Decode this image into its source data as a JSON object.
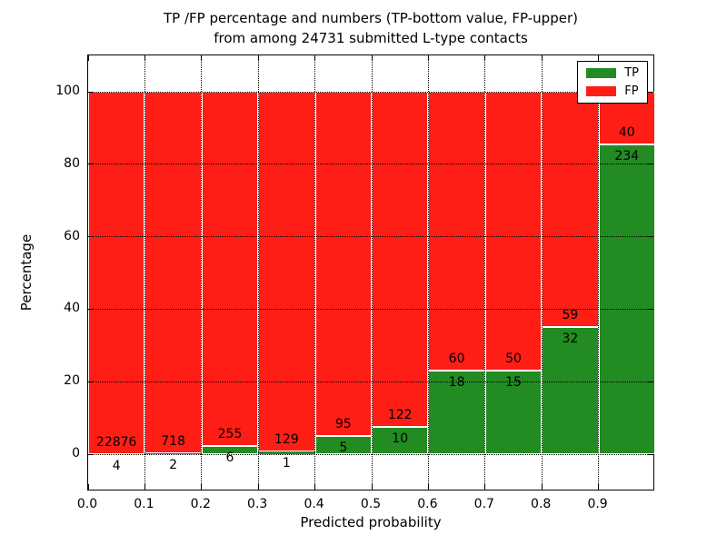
{
  "chart_data": {
    "type": "bar",
    "stacked": true,
    "percent_stacked": true,
    "title_lines": [
      "TP /FP percentage and numbers (TP-bottom value, FP-upper)",
      "from among 24731 submitted L-type contacts"
    ],
    "total_submitted": 24731,
    "xlabel": "Predicted probability",
    "ylabel": "Percentage",
    "xlim": [
      0.0,
      1.0
    ],
    "ylim": [
      -10.8,
      110.0
    ],
    "bin_edges": [
      0.0,
      0.1,
      0.2,
      0.3,
      0.4,
      0.5,
      0.6,
      0.7,
      0.8,
      0.9,
      1.0
    ],
    "xtick_labels": [
      "0.0",
      "0.1",
      "0.2",
      "0.3",
      "0.4",
      "0.5",
      "0.6",
      "0.7",
      "0.8",
      "0.9"
    ],
    "ytick_values": [
      0,
      20,
      40,
      60,
      80,
      100
    ],
    "grid": {
      "enabled": true,
      "style": "dotted",
      "color": "#000000"
    },
    "series": [
      {
        "name": "TP",
        "position": "bottom",
        "color": "#228b22",
        "counts": [
          4,
          2,
          6,
          1,
          5,
          10,
          18,
          15,
          32,
          234
        ]
      },
      {
        "name": "FP",
        "position": "top",
        "color": "#fe1e16",
        "counts": [
          22876,
          718,
          255,
          129,
          95,
          122,
          60,
          50,
          59,
          40
        ]
      }
    ],
    "tp_percent_of_bin": [
      0.02,
      0.28,
      2.3,
      0.77,
      5.0,
      7.58,
      23.08,
      23.08,
      35.16,
      85.4
    ],
    "legend": {
      "position": "upper right",
      "entries": [
        {
          "label": "TP",
          "color": "#228b22"
        },
        {
          "label": "FP",
          "color": "#fe1e16"
        }
      ]
    },
    "colors": {
      "background": "#ffffff",
      "bar_edge": "#ffffff",
      "spine": "#000000",
      "text": "#000000"
    }
  }
}
